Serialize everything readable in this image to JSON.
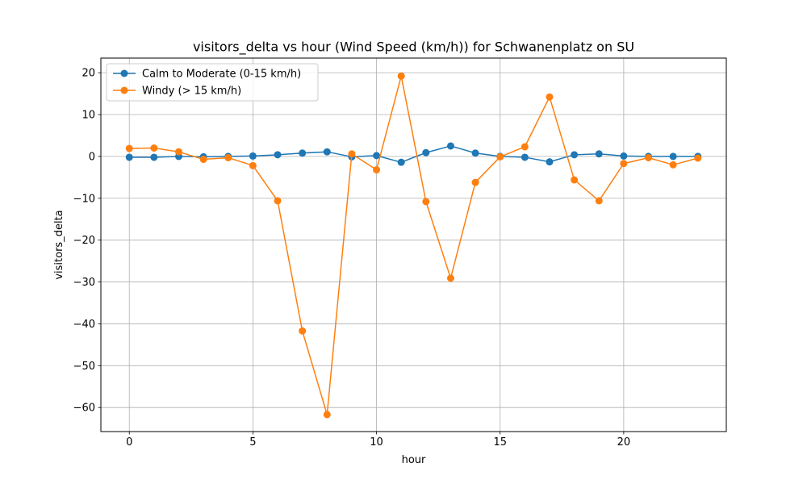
{
  "chart_data": {
    "type": "line",
    "title": "visitors_delta vs hour (Wind Speed (km/h)) for Schwanenplatz on SU",
    "xlabel": "hour",
    "ylabel": "visitors_delta",
    "xlim": [
      -1.15,
      24.15
    ],
    "ylim": [
      -65.75,
      23.5
    ],
    "xticks": [
      0,
      5,
      10,
      15,
      20
    ],
    "yticks": [
      -60,
      -50,
      -40,
      -30,
      -20,
      -10,
      0,
      10,
      20
    ],
    "ytick_labels": [
      "−60",
      "−50",
      "−40",
      "−30",
      "−20",
      "−10",
      "0",
      "10",
      "20"
    ],
    "grid": true,
    "legend_position": "top-left",
    "x": [
      0,
      1,
      2,
      3,
      4,
      5,
      6,
      7,
      8,
      9,
      10,
      11,
      12,
      13,
      14,
      15,
      16,
      17,
      18,
      19,
      20,
      21,
      22,
      23
    ],
    "series": [
      {
        "name": "Calm to Moderate (0-15 km/h)",
        "color": "#1f77b4",
        "values": [
          -0.2,
          -0.2,
          0.0,
          -0.1,
          0.0,
          0.1,
          0.4,
          0.8,
          1.1,
          -0.1,
          0.2,
          -1.4,
          0.9,
          2.5,
          0.8,
          0.0,
          -0.2,
          -1.3,
          0.4,
          0.6,
          0.1,
          0.0,
          0.0,
          0.0
        ]
      },
      {
        "name": "Windy (> 15 km/h)",
        "color": "#ff7f0e",
        "values": [
          1.9,
          2.0,
          1.1,
          -0.7,
          -0.3,
          -2.2,
          -10.6,
          -41.7,
          -61.7,
          0.6,
          -3.2,
          19.2,
          -10.8,
          -29.1,
          -6.2,
          -0.1,
          2.3,
          14.2,
          -5.6,
          -10.6,
          -1.7,
          -0.3,
          -2.0,
          -0.4
        ]
      }
    ]
  }
}
